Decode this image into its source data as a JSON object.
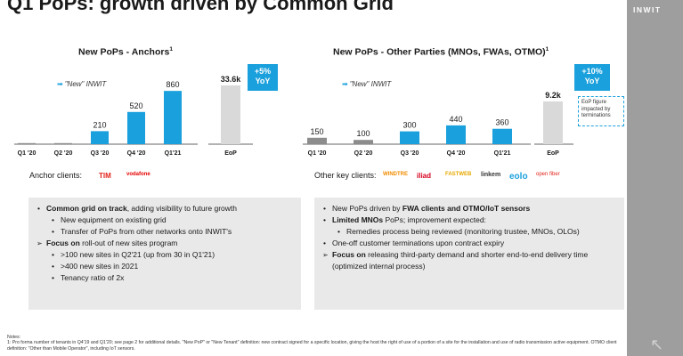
{
  "title": "Q1 PoPs: growth driven by Common Grid",
  "brand": "INWIT",
  "anchors": {
    "title": "New PoPs - Anchors",
    "title_sup": "1",
    "new_label": "\"New\" INWIT",
    "eop_label": "EoP",
    "eop_value_label": "33.6k",
    "badge_line1": "+5%",
    "badge_line2": "YoY",
    "clients_label": "Anchor clients:",
    "clients": [
      "TIM",
      "vodafone"
    ]
  },
  "others": {
    "title": "New PoPs - Other Parties (MNOs, FWAs, OTMO)",
    "title_sup": "1",
    "new_label": "\"New\" INWIT",
    "eop_label": "EoP",
    "eop_value_label": "9.2k",
    "badge_line1": "+10%",
    "badge_line2": "YoY",
    "callout": "EoP figure impacted by terminations",
    "clients_label": "Other key clients:",
    "clients": [
      "WINDTRE",
      "iliad",
      "FASTWEB",
      "linkem",
      "eolo",
      "open fiber"
    ]
  },
  "chart_data": [
    {
      "type": "bar",
      "title": "New PoPs - Anchors",
      "categories": [
        "Q1 '20",
        "Q2 '20",
        "Q3 '20",
        "Q4 '20",
        "Q1'21"
      ],
      "values": [
        0,
        0,
        210,
        520,
        860
      ],
      "value_labels": [
        "",
        "",
        "210",
        "520",
        "860"
      ],
      "eop": {
        "category": "EoP",
        "value": 33.6,
        "unit": "k",
        "label": "33.6k"
      },
      "colors": {
        "first_two": "#8c8c8c",
        "new": "#1aa0dc",
        "eop": "#d9d9d9"
      },
      "ylim": [
        0,
        1000
      ],
      "grid": false
    },
    {
      "type": "bar",
      "title": "New PoPs - Other Parties (MNOs, FWAs, OTMO)",
      "categories": [
        "Q1 '20",
        "Q2 '20",
        "Q3 '20",
        "Q4 '20",
        "Q1'21"
      ],
      "values": [
        150,
        100,
        300,
        440,
        360
      ],
      "value_labels": [
        "150",
        "100",
        "300",
        "440",
        "360"
      ],
      "eop": {
        "category": "EoP",
        "value": 9.2,
        "unit": "k",
        "label": "9.2k"
      },
      "colors": {
        "first_two": "#8c8c8c",
        "new": "#1aa0dc",
        "eop": "#d9d9d9"
      },
      "ylim": [
        0,
        1000
      ],
      "grid": false
    }
  ],
  "left_box": {
    "lines": [
      {
        "level": 1,
        "bold": "Common grid on track",
        "text": ", adding visibility to future growth"
      },
      {
        "level": 2,
        "bold": "",
        "text": "New equipment on existing grid"
      },
      {
        "level": 2,
        "bold": "",
        "text": "Transfer of PoPs from other networks onto INWIT's"
      },
      {
        "level": "c",
        "bold": "Focus on",
        "text": " roll-out of new sites program"
      },
      {
        "level": 2,
        "bold": "",
        "text": ">100 new sites in Q2'21 (up from 30 in Q1'21)"
      },
      {
        "level": 2,
        "bold": "",
        "text": ">400 new sites in 2021"
      },
      {
        "level": 2,
        "bold": "",
        "text": "Tenancy ratio of 2x"
      }
    ]
  },
  "right_box": {
    "lines": [
      {
        "level": 1,
        "pre": "New PoPs driven by ",
        "bold": "FWA clients and OTMO/IoT sensors",
        "text": ""
      },
      {
        "level": 1,
        "pre": "",
        "bold": "Limited MNOs",
        "text": " PoPs; improvement expected:"
      },
      {
        "level": 2,
        "pre": "",
        "bold": "",
        "text": "Remedies process being reviewed (monitoring trustee, MNOs, OLOs)"
      },
      {
        "level": 1,
        "pre": "",
        "bold": "",
        "text": "One-off customer terminations upon contract expiry"
      },
      {
        "level": "c",
        "pre": "",
        "bold": "Focus on",
        "text": " releasing third-party demand and shorter end-to-end delivery time (optimized internal process)"
      }
    ]
  },
  "notes": {
    "heading": "Notes:",
    "text": "1: Pro forma number of tenants in Q4'19 and Q1'20; see page 2 for additional details. \"New PoP\" or \"New Tenant\" definition: new contract signed for a specific location, giving the host the right of use of a portion of a site for the installation and use of radio transmission active equipment. OTMO client definition: \"Other than Mobile Operator\", including IoT sensors."
  }
}
